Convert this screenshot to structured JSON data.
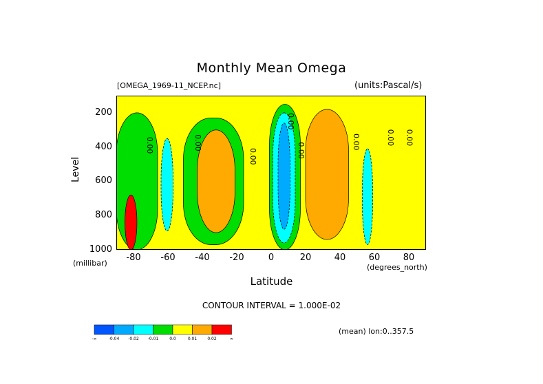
{
  "chart_data": {
    "type": "heatmap",
    "title": "Monthly Mean Omega",
    "dataset": "[OMEGA_1969-11_NCEP.nc]",
    "units": "(units:Pascal/s)",
    "xlabel": "Latitude",
    "x_unit": "(degrees_north)",
    "ylabel": "Level",
    "y_unit": "(millibar)",
    "xlim": [
      -90,
      90
    ],
    "ylim": [
      1000,
      100
    ],
    "x_ticks": [
      "-80",
      "-60",
      "-40",
      "-20",
      "0",
      "20",
      "40",
      "60",
      "80"
    ],
    "y_ticks": [
      "200",
      "400",
      "600",
      "800",
      "1000"
    ],
    "x_tick_values": [
      -80,
      -60,
      -40,
      -20,
      0,
      20,
      40,
      60,
      80
    ],
    "y_tick_values": [
      200,
      400,
      600,
      800,
      1000
    ],
    "contour_interval": "CONTOUR INTERVAL = 1.000E-02",
    "contour_labels": [
      {
        "text": "0.00",
        "lat": -72,
        "level": 390
      },
      {
        "text": "0.00",
        "lat": -44,
        "level": 375
      },
      {
        "text": "0.00",
        "lat": -12,
        "level": 455
      },
      {
        "text": "0.00",
        "lat": 10,
        "level": 250
      },
      {
        "text": "0.00",
        "lat": 16,
        "level": 420
      },
      {
        "text": "0.00",
        "lat": 48,
        "level": 370
      },
      {
        "text": "0.00",
        "lat": 68,
        "level": 345
      },
      {
        "text": "0.00",
        "lat": 79,
        "level": 345
      }
    ],
    "regions": [
      {
        "level_bin": 4,
        "lat": [
          -90,
          90
        ],
        "level": [
          100,
          1000
        ]
      },
      {
        "level_bin": 3,
        "lat": [
          -90,
          -66
        ],
        "level": [
          200,
          1000
        ]
      },
      {
        "level_bin": 3,
        "lat": [
          -51,
          -16
        ],
        "level": [
          230,
          970
        ]
      },
      {
        "level_bin": 5,
        "lat": [
          -43,
          -21
        ],
        "level": [
          300,
          900
        ]
      },
      {
        "level_bin": 3,
        "lat": [
          -1,
          17
        ],
        "level": [
          150,
          1000
        ]
      },
      {
        "level_bin": 2,
        "lat": [
          1,
          14
        ],
        "level": [
          200,
          960
        ]
      },
      {
        "level_bin": 1,
        "lat": [
          4,
          11
        ],
        "level": [
          260,
          880
        ]
      },
      {
        "level_bin": 5,
        "lat": [
          20,
          45
        ],
        "level": [
          180,
          940
        ]
      },
      {
        "level_bin": 2,
        "lat": [
          53,
          59
        ],
        "level": [
          410,
          970
        ]
      },
      {
        "level_bin": 6,
        "lat": [
          -85,
          -78
        ],
        "level": [
          680,
          1000
        ]
      },
      {
        "level_bin": 2,
        "lat": [
          -64,
          -57
        ],
        "level": [
          350,
          890
        ]
      }
    ],
    "colorbar": {
      "colors": [
        "#0055ff",
        "#00aaff",
        "#00ffff",
        "#00dd00",
        "#ffff00",
        "#ffaa00",
        "#ff0000"
      ],
      "labels": [
        "-∞",
        "-0.04",
        "-0.02",
        "-0.01",
        "0.0",
        "0.01",
        "0.02",
        "∞"
      ]
    }
  },
  "footer": {
    "mean_label": "(mean) lon:0..357.5"
  }
}
